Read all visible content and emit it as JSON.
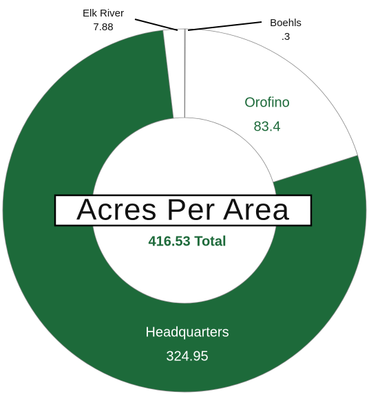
{
  "chart_data": {
    "type": "donut",
    "title": "Acres Per Area",
    "subtitle": "416.53 Total",
    "categories": [
      "Boehls",
      "Orofino",
      "Headquarters",
      "Elk River"
    ],
    "values": [
      0.3,
      83.4,
      324.95,
      7.88
    ],
    "value_labels": [
      ".3",
      "83.4",
      "324.95",
      "7.88"
    ],
    "colors": [
      "#ffffff",
      "#ffffff",
      "#1d6a3a",
      "#ffffff"
    ]
  }
}
